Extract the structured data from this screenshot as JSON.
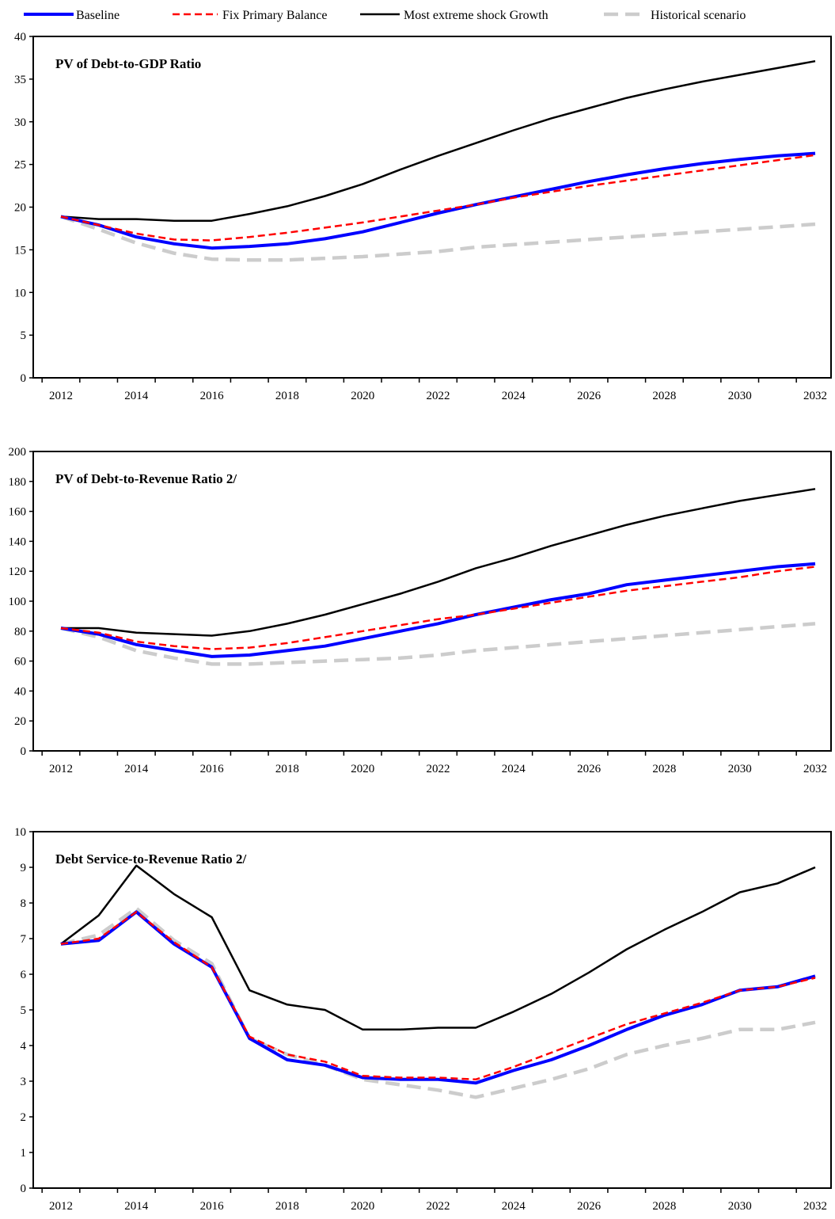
{
  "legend": {
    "items": [
      {
        "label": "Baseline",
        "color": "#0000ff",
        "style": "solid-thick"
      },
      {
        "label": "Fix Primary Balance",
        "color": "#ff0000",
        "style": "dashed"
      },
      {
        "label": "Most extreme shock Growth",
        "color": "#000000",
        "style": "solid"
      },
      {
        "label": "Historical scenario",
        "color": "#cccccc",
        "style": "dashed-thick"
      }
    ]
  },
  "chart_data": [
    {
      "type": "line",
      "title": "PV of Debt-to-GDP Ratio",
      "x": [
        2012,
        2013,
        2014,
        2015,
        2016,
        2017,
        2018,
        2019,
        2020,
        2021,
        2022,
        2023,
        2024,
        2025,
        2026,
        2027,
        2028,
        2029,
        2030,
        2031,
        2032
      ],
      "x_tick_labels": [
        "2012",
        "2014",
        "2016",
        "2018",
        "2020",
        "2022",
        "2024",
        "2026",
        "2028",
        "2030",
        "2032"
      ],
      "ylim": [
        0,
        40
      ],
      "y_ticks": [
        0,
        5,
        10,
        15,
        20,
        25,
        30,
        35,
        40
      ],
      "series": [
        {
          "name": "Baseline",
          "values": [
            18.9,
            17.9,
            16.5,
            15.7,
            15.2,
            15.4,
            15.7,
            16.3,
            17.1,
            18.2,
            19.3,
            20.3,
            21.2,
            22.1,
            23.0,
            23.8,
            24.5,
            25.1,
            25.6,
            26.0,
            26.3
          ]
        },
        {
          "name": "Fix Primary Balance",
          "values": [
            18.9,
            17.9,
            16.9,
            16.2,
            16.1,
            16.5,
            17.0,
            17.6,
            18.2,
            18.9,
            19.6,
            20.3,
            21.1,
            21.8,
            22.5,
            23.1,
            23.7,
            24.3,
            24.9,
            25.5,
            26.1
          ]
        },
        {
          "name": "Most extreme shock Growth",
          "values": [
            18.9,
            18.6,
            18.6,
            18.4,
            18.4,
            19.2,
            20.1,
            21.3,
            22.7,
            24.4,
            26.0,
            27.5,
            29.0,
            30.4,
            31.6,
            32.8,
            33.8,
            34.7,
            35.5,
            36.3,
            37.1
          ]
        },
        {
          "name": "Historical scenario",
          "values": [
            18.9,
            17.4,
            15.8,
            14.6,
            13.9,
            13.8,
            13.8,
            14.0,
            14.2,
            14.5,
            14.8,
            15.3,
            15.6,
            15.9,
            16.2,
            16.5,
            16.8,
            17.1,
            17.4,
            17.7,
            18.0
          ]
        }
      ]
    },
    {
      "type": "line",
      "title": "PV of Debt-to-Revenue Ratio 2/",
      "x": [
        2012,
        2013,
        2014,
        2015,
        2016,
        2017,
        2018,
        2019,
        2020,
        2021,
        2022,
        2023,
        2024,
        2025,
        2026,
        2027,
        2028,
        2029,
        2030,
        2031,
        2032
      ],
      "x_tick_labels": [
        "2012",
        "2014",
        "2016",
        "2018",
        "2020",
        "2022",
        "2024",
        "2026",
        "2028",
        "2030",
        "2032"
      ],
      "ylim": [
        0,
        200
      ],
      "y_ticks": [
        0,
        20,
        40,
        60,
        80,
        100,
        120,
        140,
        160,
        180,
        200
      ],
      "series": [
        {
          "name": "Baseline",
          "values": [
            82,
            78,
            71,
            67,
            63,
            64,
            67,
            70,
            75,
            80,
            85,
            91,
            96,
            101,
            105,
            111,
            114,
            117,
            120,
            123,
            125
          ]
        },
        {
          "name": "Fix Primary Balance",
          "values": [
            82,
            79,
            73,
            70,
            68,
            69,
            72,
            76,
            80,
            84,
            88,
            91,
            95,
            99,
            103,
            107,
            110,
            113,
            116,
            120,
            123
          ]
        },
        {
          "name": "Most extreme shock Growth",
          "values": [
            82,
            82,
            79,
            78,
            77,
            80,
            85,
            91,
            98,
            105,
            113,
            122,
            129,
            137,
            144,
            151,
            157,
            162,
            167,
            171,
            175
          ]
        },
        {
          "name": "Historical scenario",
          "values": [
            82,
            76,
            67,
            62,
            58,
            58,
            59,
            60,
            61,
            62,
            64,
            67,
            69,
            71,
            73,
            75,
            77,
            79,
            81,
            83,
            85
          ]
        }
      ]
    },
    {
      "type": "line",
      "title": "Debt Service-to-Revenue Ratio 2/",
      "x": [
        2012,
        2013,
        2014,
        2015,
        2016,
        2017,
        2018,
        2019,
        2020,
        2021,
        2022,
        2023,
        2024,
        2025,
        2026,
        2027,
        2028,
        2029,
        2030,
        2031,
        2032
      ],
      "x_tick_labels": [
        "2012",
        "2014",
        "2016",
        "2018",
        "2020",
        "2022",
        "2024",
        "2026",
        "2028",
        "2030",
        "2032"
      ],
      "ylim": [
        0,
        10
      ],
      "y_ticks": [
        0,
        1,
        2,
        3,
        4,
        5,
        6,
        7,
        8,
        9,
        10
      ],
      "series": [
        {
          "name": "Baseline",
          "values": [
            6.85,
            6.95,
            7.75,
            6.85,
            6.2,
            4.2,
            3.6,
            3.45,
            3.1,
            3.05,
            3.05,
            2.95,
            3.3,
            3.6,
            4.0,
            4.45,
            4.85,
            5.15,
            5.55,
            5.65,
            5.95
          ]
        },
        {
          "name": "Fix Primary Balance",
          "values": [
            6.85,
            7.0,
            7.75,
            6.9,
            6.2,
            4.25,
            3.75,
            3.55,
            3.15,
            3.1,
            3.1,
            3.05,
            3.4,
            3.8,
            4.2,
            4.6,
            4.9,
            5.2,
            5.55,
            5.65,
            5.9
          ]
        },
        {
          "name": "Most extreme shock Growth",
          "values": [
            6.85,
            7.65,
            9.05,
            8.25,
            7.6,
            5.55,
            5.15,
            5.0,
            4.45,
            4.45,
            4.5,
            4.5,
            4.95,
            5.45,
            6.05,
            6.7,
            7.25,
            7.75,
            8.3,
            8.55,
            9.0
          ]
        },
        {
          "name": "Historical scenario",
          "values": [
            6.85,
            7.1,
            7.85,
            6.95,
            6.3,
            4.2,
            3.75,
            3.45,
            3.05,
            2.9,
            2.75,
            2.55,
            2.8,
            3.05,
            3.35,
            3.75,
            4.0,
            4.2,
            4.45,
            4.45,
            4.65
          ]
        }
      ]
    }
  ]
}
